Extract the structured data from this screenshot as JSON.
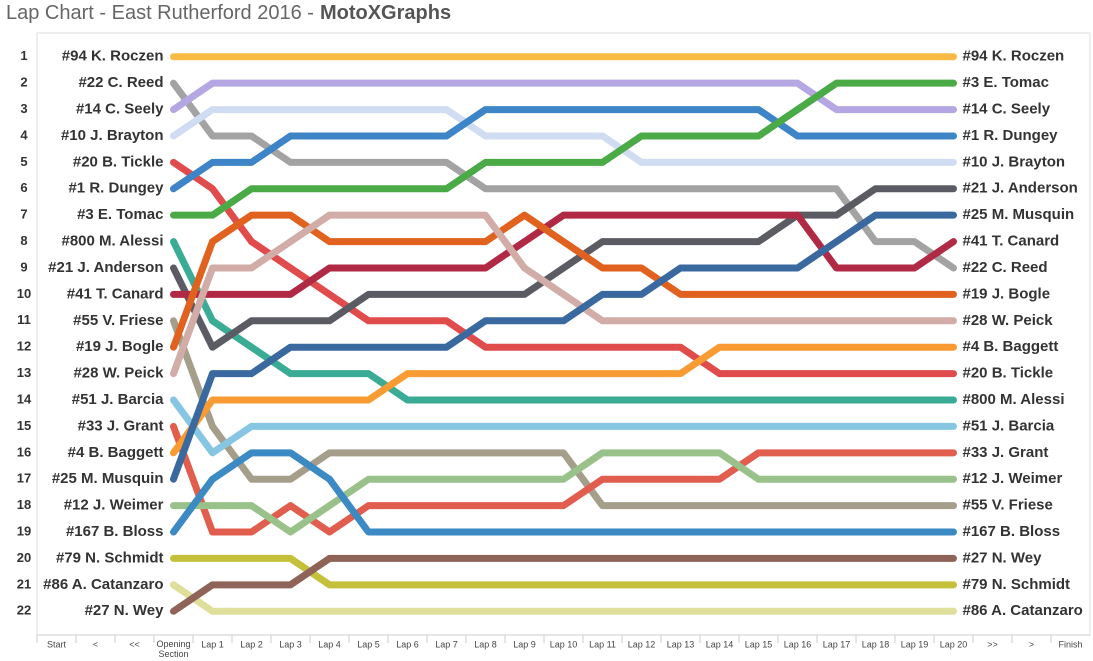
{
  "chart_data": {
    "type": "line",
    "title": "Lap Chart - East Rutherford 2016 -",
    "brand": "MotoXGraphs",
    "y_reversed": true,
    "ylim": [
      0.1,
      22.9
    ],
    "yticks": [
      1,
      2,
      3,
      4,
      5,
      6,
      7,
      8,
      9,
      10,
      11,
      12,
      13,
      14,
      15,
      16,
      17,
      18,
      19,
      20,
      21,
      22
    ],
    "categories": [
      "Start",
      "<",
      "<<",
      "Opening Section",
      "Lap 1",
      "Lap 2",
      "Lap 3",
      "Lap 4",
      "Lap 5",
      "Lap 6",
      "Lap 7",
      "Lap 8",
      "Lap 9",
      "Lap 10",
      "Lap 11",
      "Lap 12",
      "Lap 13",
      "Lap 14",
      "Lap 15",
      "Lap 16",
      "Lap 17",
      "Lap 18",
      "Lap 19",
      "Lap 20",
      ">>",
      ">",
      "Finish"
    ],
    "series": [
      {
        "name": "#94 K. Roczen",
        "color": "#f9bb46",
        "values": [
          null,
          null,
          null,
          1,
          1,
          1,
          1,
          1,
          1,
          1,
          1,
          1,
          1,
          1,
          1,
          1,
          1,
          1,
          1,
          1,
          1,
          1,
          1,
          1,
          null,
          null,
          null
        ]
      },
      {
        "name": "#22 C. Reed",
        "color": "#a3a3a3",
        "values": [
          null,
          null,
          null,
          2,
          4,
          4,
          5,
          5,
          5,
          5,
          5,
          6,
          6,
          6,
          6,
          6,
          6,
          6,
          6,
          6,
          6,
          8,
          8,
          9,
          null,
          null,
          null
        ]
      },
      {
        "name": "#14 C. Seely",
        "color": "#b5a6e4",
        "values": [
          null,
          null,
          null,
          3,
          2,
          2,
          2,
          2,
          2,
          2,
          2,
          2,
          2,
          2,
          2,
          2,
          2,
          2,
          2,
          2,
          3,
          3,
          3,
          3,
          null,
          null,
          null
        ]
      },
      {
        "name": "#10 J. Brayton",
        "color": "#cfdcf1",
        "values": [
          null,
          null,
          null,
          4,
          3,
          3,
          3,
          3,
          3,
          3,
          3,
          4,
          4,
          4,
          4,
          5,
          5,
          5,
          5,
          5,
          5,
          5,
          5,
          5,
          null,
          null,
          null
        ]
      },
      {
        "name": "#20 B. Tickle",
        "color": "#e04b4b",
        "values": [
          null,
          null,
          null,
          5,
          6,
          8,
          9,
          10,
          11,
          11,
          11,
          12,
          12,
          12,
          12,
          12,
          12,
          13,
          13,
          13,
          13,
          13,
          13,
          13,
          null,
          null,
          null
        ]
      },
      {
        "name": "#1 R. Dungey",
        "color": "#3d85c6",
        "values": [
          null,
          null,
          null,
          6,
          5,
          5,
          4,
          4,
          4,
          4,
          4,
          3,
          3,
          3,
          3,
          3,
          3,
          3,
          3,
          4,
          4,
          4,
          4,
          4,
          null,
          null,
          null
        ]
      },
      {
        "name": "#3 E. Tomac",
        "color": "#4aaa46",
        "values": [
          null,
          null,
          null,
          7,
          7,
          6,
          6,
          6,
          6,
          6,
          6,
          5,
          5,
          5,
          5,
          4,
          4,
          4,
          4,
          3,
          2,
          2,
          2,
          2,
          null,
          null,
          null
        ]
      },
      {
        "name": "#800 M. Alessi",
        "color": "#3aab94",
        "values": [
          null,
          null,
          null,
          8,
          11,
          12,
          13,
          13,
          13,
          14,
          14,
          14,
          14,
          14,
          14,
          14,
          14,
          14,
          14,
          14,
          14,
          14,
          14,
          14,
          null,
          null,
          null
        ]
      },
      {
        "name": "#21 J. Anderson",
        "color": "#5b5b63",
        "values": [
          null,
          null,
          null,
          9,
          12,
          11,
          11,
          11,
          10,
          10,
          10,
          10,
          10,
          9,
          8,
          8,
          8,
          8,
          8,
          7,
          7,
          6,
          6,
          6,
          null,
          null,
          null
        ]
      },
      {
        "name": "#41 T. Canard",
        "color": "#b02a45",
        "values": [
          null,
          null,
          null,
          10,
          10,
          10,
          10,
          9,
          9,
          9,
          9,
          9,
          8,
          7,
          7,
          7,
          7,
          7,
          7,
          7,
          9,
          9,
          9,
          8,
          null,
          null,
          null
        ]
      },
      {
        "name": "#55 V. Friese",
        "color": "#a59e8a",
        "values": [
          null,
          null,
          null,
          11,
          15,
          17,
          17,
          16,
          16,
          16,
          16,
          16,
          16,
          16,
          18,
          18,
          18,
          18,
          18,
          18,
          18,
          18,
          18,
          18,
          null,
          null,
          null
        ]
      },
      {
        "name": "#19 J. Bogle",
        "color": "#e0621e",
        "values": [
          null,
          null,
          null,
          12,
          8,
          7,
          7,
          8,
          8,
          8,
          8,
          8,
          7,
          8,
          9,
          9,
          10,
          10,
          10,
          10,
          10,
          10,
          10,
          10,
          null,
          null,
          null
        ]
      },
      {
        "name": "#28 W. Peick",
        "color": "#d2aca6",
        "values": [
          null,
          null,
          null,
          13,
          9,
          9,
          8,
          7,
          7,
          7,
          7,
          7,
          9,
          10,
          11,
          11,
          11,
          11,
          11,
          11,
          11,
          11,
          11,
          11,
          null,
          null,
          null
        ]
      },
      {
        "name": "#51 J. Barcia",
        "color": "#86c6e3",
        "values": [
          null,
          null,
          null,
          14,
          16,
          15,
          15,
          15,
          15,
          15,
          15,
          15,
          15,
          15,
          15,
          15,
          15,
          15,
          15,
          15,
          15,
          15,
          15,
          15,
          null,
          null,
          null
        ]
      },
      {
        "name": "#33 J. Grant",
        "color": "#e15d4e",
        "values": [
          null,
          null,
          null,
          15,
          19,
          19,
          18,
          19,
          18,
          18,
          18,
          18,
          18,
          18,
          17,
          17,
          17,
          17,
          16,
          16,
          16,
          16,
          16,
          16,
          null,
          null,
          null
        ]
      },
      {
        "name": "#4 B. Baggett",
        "color": "#f89b32",
        "values": [
          null,
          null,
          null,
          16,
          14,
          14,
          14,
          14,
          14,
          13,
          13,
          13,
          13,
          13,
          13,
          13,
          13,
          12,
          12,
          12,
          12,
          12,
          12,
          12,
          null,
          null,
          null
        ]
      },
      {
        "name": "#25 M. Musquin",
        "color": "#39699f",
        "values": [
          null,
          null,
          null,
          17,
          13,
          13,
          12,
          12,
          12,
          12,
          12,
          11,
          11,
          11,
          10,
          10,
          9,
          9,
          9,
          9,
          8,
          7,
          7,
          7,
          null,
          null,
          null
        ]
      },
      {
        "name": "#12 J. Weimer",
        "color": "#98c289",
        "values": [
          null,
          null,
          null,
          18,
          18,
          18,
          19,
          18,
          17,
          17,
          17,
          17,
          17,
          17,
          16,
          16,
          16,
          16,
          17,
          17,
          17,
          17,
          17,
          17,
          null,
          null,
          null
        ]
      },
      {
        "name": "#167 B. Bloss",
        "color": "#3b8ac4",
        "values": [
          null,
          null,
          null,
          19,
          17,
          16,
          16,
          17,
          19,
          19,
          19,
          19,
          19,
          19,
          19,
          19,
          19,
          19,
          19,
          19,
          19,
          19,
          19,
          19,
          null,
          null,
          null
        ]
      },
      {
        "name": "#79 N. Schmidt",
        "color": "#c4c03a",
        "values": [
          null,
          null,
          null,
          20,
          20,
          20,
          20,
          21,
          21,
          21,
          21,
          21,
          21,
          21,
          21,
          21,
          21,
          21,
          21,
          21,
          21,
          21,
          21,
          21,
          null,
          null,
          null
        ]
      },
      {
        "name": "#86 A. Catanzaro",
        "color": "#dedf9a",
        "values": [
          null,
          null,
          null,
          21,
          22,
          22,
          22,
          22,
          22,
          22,
          22,
          22,
          22,
          22,
          22,
          22,
          22,
          22,
          22,
          22,
          22,
          22,
          22,
          22,
          null,
          null,
          null
        ]
      },
      {
        "name": "#27 N. Wey",
        "color": "#8f6358",
        "values": [
          null,
          null,
          null,
          22,
          21,
          21,
          21,
          20,
          20,
          20,
          20,
          20,
          20,
          20,
          20,
          20,
          20,
          20,
          20,
          20,
          20,
          20,
          20,
          20,
          null,
          null,
          null
        ]
      }
    ]
  }
}
